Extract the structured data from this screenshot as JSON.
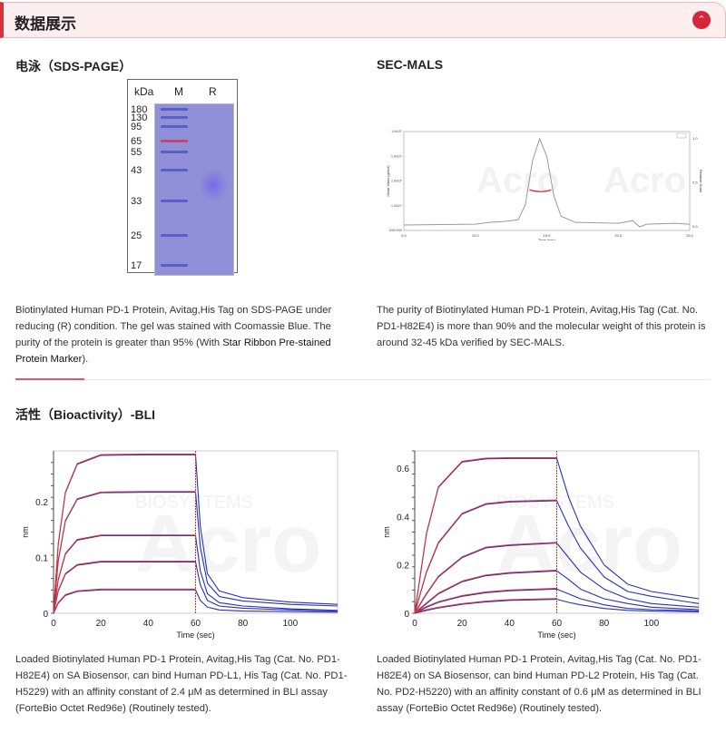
{
  "header": {
    "title": "数据展示",
    "collapse_icon": "chevron-up-icon",
    "accent": "#d7263a"
  },
  "sds": {
    "title": "电泳（SDS-PAGE）",
    "gel": {
      "unit_label": "kDa",
      "lane_m": "M",
      "lane_r": "R",
      "markers": [
        "180",
        "130",
        "95",
        "65",
        "55",
        "43",
        "33",
        "25",
        "17"
      ]
    },
    "caption": "Biotinylated Human PD-1 Protein, Avitag,His Tag on SDS-PAGE under reducing (R) condition. The gel was stained with Coomassie Blue. The purity of the protein is greater than 95% (With ",
    "caption_link": "Star Ribbon Pre-stained Protein Marker",
    "caption_end": ")."
  },
  "secmals": {
    "title": "SEC-MALS",
    "caption": "The purity of Biotinylated Human PD-1 Protein, Avitag,His Tag (Cat. No. PD1-H82E4) is more than 90% and the molecular weight of this protein is around 32-45 kDa verified by SEC-MALS."
  },
  "bli": {
    "title": "活性（Bioactivity）-BLI",
    "caption_left": "Loaded Biotinylated Human PD-1 Protein, Avitag,His Tag (Cat. No. PD1-H82E4) on SA Biosensor, can bind Human PD-L1, His Tag (Cat. No. PD1-H5229) with an affinity constant of 2.4 μM as determined in BLI assay (ForteBio Octet Red96e) (Routinely tested).",
    "caption_right": "Loaded Biotinylated Human PD-1 Protein, Avitag,His Tag (Cat. No. PD1-H82E4) on SA Biosensor, can bind Human PD-L2 Protein, His Tag (Cat. No. PD2-H5220) with an affinity constant of 0.6 μM as determined in BLI assay (ForteBio Octet Red96e) (Routinely tested)."
  },
  "chart_data": [
    {
      "type": "line",
      "id": "sec",
      "xlabel": "Time (min)",
      "ylabel": "Molar Mass (g/mol)",
      "y2label": "Relative Scale",
      "xlim": [
        5,
        25
      ],
      "xticks": [
        "5.0",
        "10.0",
        "15.0",
        "20.0",
        "25.0"
      ],
      "yticks": [
        "1000.000",
        "1.0x10⁴",
        "1.0x10⁵",
        "1.0x10⁶",
        "1.0x10⁷"
      ],
      "y2ticks": [
        "0.0",
        "0.5",
        "1.0"
      ],
      "x": [
        5,
        10,
        11,
        12,
        13,
        13.5,
        14,
        14.5,
        15,
        15.5,
        16,
        17,
        20,
        21,
        21.5,
        22,
        24,
        25
      ],
      "values": [
        0.02,
        0.03,
        0.05,
        0.06,
        0.08,
        0.25,
        0.75,
        1.0,
        0.8,
        0.35,
        0.12,
        0.05,
        0.04,
        0.07,
        0.0,
        0.03,
        0.04,
        0.03
      ],
      "colors": {
        "trace": "#9a9a9a",
        "mass": "#d7263a"
      }
    },
    {
      "type": "line",
      "id": "bli-l1",
      "xlabel": "Time (sec)",
      "ylabel": "nm",
      "xlim": [
        0,
        120
      ],
      "ylim": [
        0,
        0.291
      ],
      "xticks": [
        0,
        20,
        40,
        60,
        80,
        100
      ],
      "yticks": [
        0,
        0.1,
        0.2
      ],
      "x": [
        0,
        2,
        5,
        10,
        20,
        40,
        60,
        62,
        65,
        70,
        80,
        100,
        120
      ],
      "series": [
        {
          "values": [
            0,
            0.124,
            0.216,
            0.267,
            0.283,
            0.284,
            0.284,
            0.156,
            0.071,
            0.04,
            0.028,
            0.02,
            0.016
          ]
        },
        {
          "values": [
            0,
            0.094,
            0.165,
            0.204,
            0.216,
            0.217,
            0.217,
            0.119,
            0.054,
            0.03,
            0.022,
            0.016,
            0.013
          ]
        },
        {
          "values": [
            0,
            0.06,
            0.106,
            0.131,
            0.139,
            0.139,
            0.139,
            0.076,
            0.035,
            0.019,
            0.013,
            0.008,
            0.005
          ]
        },
        {
          "values": [
            0,
            0.04,
            0.07,
            0.086,
            0.092,
            0.092,
            0.092,
            0.051,
            0.023,
            0.013,
            0.009,
            0.006,
            0.004
          ]
        },
        {
          "values": [
            0,
            0.018,
            0.032,
            0.039,
            0.042,
            0.042,
            0.042,
            0.023,
            0.011,
            0.006,
            0.004,
            0.003,
            0.002
          ]
        }
      ],
      "colors": {
        "data": "#2a2fb8",
        "fit": "#e0302a"
      }
    },
    {
      "type": "line",
      "id": "bli-l2",
      "xlabel": "Time (sec)",
      "ylabel": "nm",
      "xlim": [
        0,
        120
      ],
      "ylim": [
        0,
        0.671
      ],
      "xticks": [
        0,
        20,
        40,
        60,
        80,
        100
      ],
      "yticks": [
        0,
        0.2,
        0.4,
        0.6
      ],
      "x": [
        0,
        5,
        10,
        20,
        30,
        40,
        60,
        65,
        70,
        80,
        90,
        100,
        120
      ],
      "series": [
        {
          "values": [
            0,
            0.33,
            0.52,
            0.625,
            0.638,
            0.64,
            0.64,
            0.48,
            0.36,
            0.2,
            0.12,
            0.09,
            0.06
          ]
        },
        {
          "values": [
            0,
            0.17,
            0.29,
            0.41,
            0.45,
            0.46,
            0.465,
            0.36,
            0.27,
            0.15,
            0.09,
            0.07,
            0.04
          ]
        },
        {
          "values": [
            0,
            0.08,
            0.15,
            0.23,
            0.27,
            0.28,
            0.29,
            0.23,
            0.17,
            0.1,
            0.06,
            0.04,
            0.025
          ]
        },
        {
          "values": [
            0,
            0.04,
            0.08,
            0.13,
            0.155,
            0.165,
            0.175,
            0.14,
            0.1,
            0.06,
            0.04,
            0.025,
            0.015
          ]
        },
        {
          "values": [
            0,
            0.025,
            0.045,
            0.07,
            0.085,
            0.093,
            0.1,
            0.08,
            0.06,
            0.035,
            0.02,
            0.015,
            0.01
          ]
        },
        {
          "values": [
            0,
            0.012,
            0.022,
            0.037,
            0.047,
            0.053,
            0.058,
            0.045,
            0.035,
            0.02,
            0.012,
            0.009,
            0.006
          ]
        }
      ],
      "colors": {
        "data": "#2a2fb8",
        "fit": "#e0302a"
      }
    }
  ]
}
